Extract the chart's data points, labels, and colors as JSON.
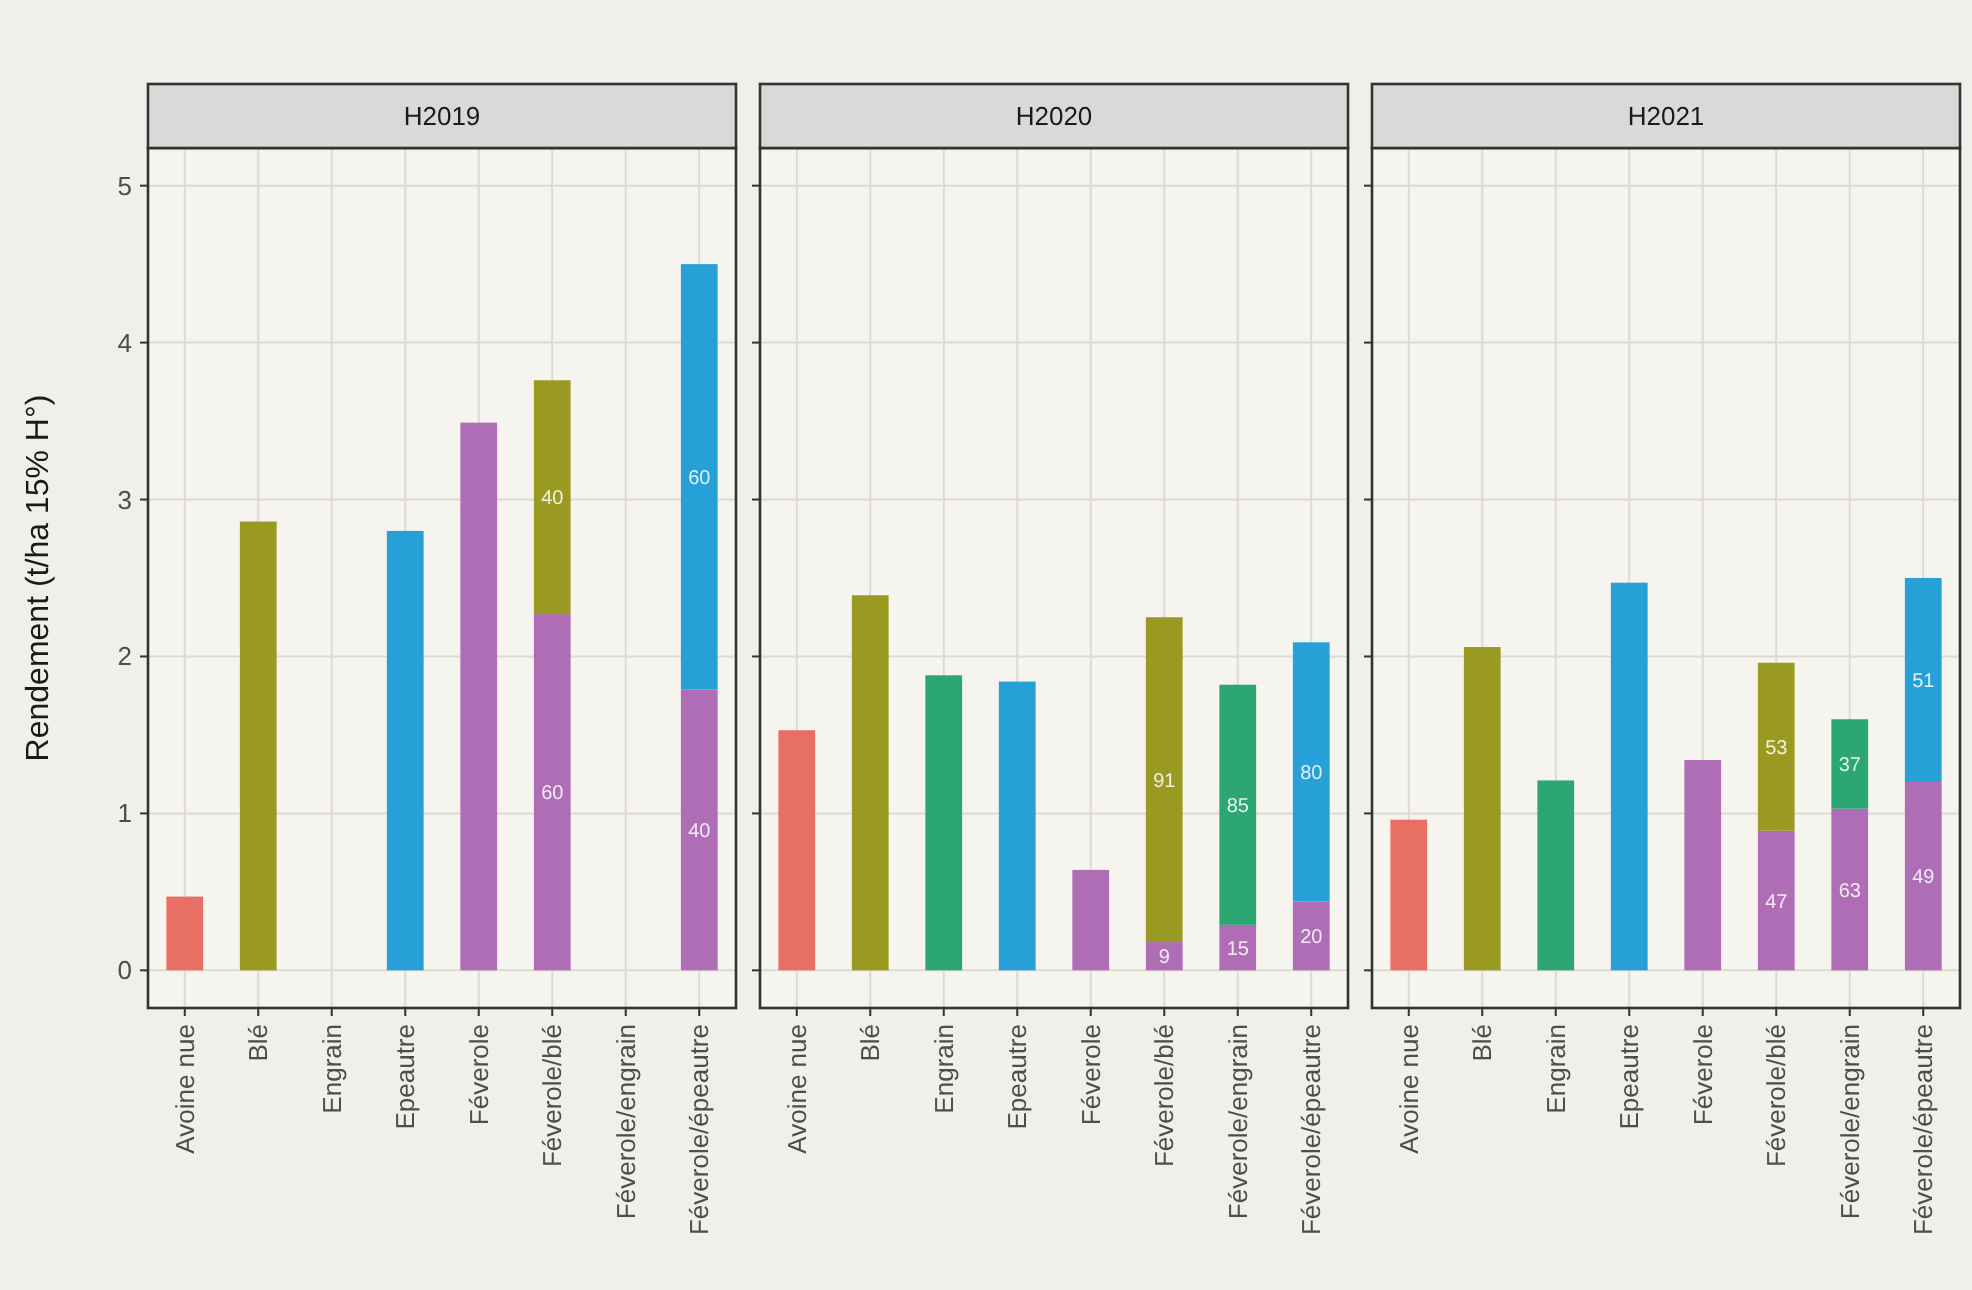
{
  "chart_data": [
    {
      "type": "bar",
      "title": "H2019",
      "ylabel": "Rendement (t/ha 15% H°)",
      "stacked": true,
      "grid": true,
      "ylim": [
        -0.24,
        5.24
      ],
      "yticks": [
        0,
        1,
        2,
        3,
        4,
        5
      ],
      "categories": [
        "Avoine nue",
        "Blé",
        "Engrain",
        "Epeautre",
        "Féverole",
        "Féverole/blé",
        "Féverole/engrain",
        "Féverole/épeautre"
      ],
      "series": [
        {
          "color": "#ae6db5",
          "values": [
            null,
            null,
            null,
            null,
            3.49,
            2.27,
            null,
            1.79
          ]
        },
        {
          "color": "#e76f63",
          "values": [
            0.47,
            null,
            null,
            null,
            null,
            null,
            null,
            null
          ]
        },
        {
          "color": "#9a9a22",
          "values": [
            null,
            2.86,
            null,
            null,
            null,
            1.49,
            null,
            null
          ]
        },
        {
          "color": "#27a0d8",
          "values": [
            null,
            null,
            null,
            2.8,
            null,
            null,
            null,
            2.71
          ]
        }
      ],
      "annotations": [
        "60",
        "40",
        "40",
        "60"
      ]
    },
    {
      "type": "bar",
      "title": "H2020",
      "stacked": true,
      "grid": true,
      "tick_labels": "x",
      "ylim": [
        -0.24,
        5.24
      ],
      "yticks": [
        0,
        1,
        2,
        3,
        4,
        5
      ],
      "categories": [
        "Avoine nue",
        "Blé",
        "Engrain",
        "Epeautre",
        "Féverole",
        "Féverole/blé",
        "Féverole/engrain",
        "Féverole/épeautre"
      ],
      "series": [
        {
          "color": "#ae6db5",
          "values": [
            null,
            null,
            null,
            null,
            0.64,
            0.18,
            0.29,
            0.44
          ]
        },
        {
          "color": "#e76f63",
          "values": [
            1.53,
            null,
            null,
            null,
            null,
            null,
            null,
            null
          ]
        },
        {
          "color": "#9a9a22",
          "values": [
            null,
            2.39,
            null,
            null,
            null,
            2.07,
            null,
            null
          ]
        },
        {
          "color": "#2ca673",
          "values": [
            null,
            null,
            1.88,
            null,
            null,
            null,
            1.53,
            null
          ]
        },
        {
          "color": "#27a0d8",
          "values": [
            null,
            null,
            null,
            1.84,
            null,
            null,
            null,
            1.65
          ]
        }
      ],
      "annotations": [
        "9",
        "91",
        "15",
        "85",
        "20",
        "80"
      ]
    },
    {
      "type": "bar",
      "title": "H2021",
      "stacked": true,
      "grid": true,
      "tick_labels": "x",
      "ylim": [
        -0.24,
        5.24
      ],
      "yticks": [
        0,
        1,
        2,
        3,
        4,
        5
      ],
      "categories": [
        "Avoine nue",
        "Blé",
        "Engrain",
        "Epeautre",
        "Féverole",
        "Féverole/blé",
        "Féverole/engrain",
        "Féverole/épeautre"
      ],
      "series": [
        {
          "color": "#ae6db5",
          "values": [
            null,
            null,
            null,
            null,
            1.34,
            0.89,
            1.03,
            1.2
          ]
        },
        {
          "color": "#e76f63",
          "values": [
            0.96,
            null,
            null,
            null,
            null,
            null,
            null,
            null
          ]
        },
        {
          "color": "#9a9a22",
          "values": [
            null,
            2.06,
            null,
            null,
            null,
            1.07,
            null,
            null
          ]
        },
        {
          "color": "#2ca673",
          "values": [
            null,
            null,
            1.21,
            null,
            null,
            null,
            0.57,
            null
          ]
        },
        {
          "color": "#27a0d8",
          "values": [
            null,
            null,
            null,
            2.47,
            null,
            null,
            null,
            1.3
          ]
        }
      ],
      "annotations": [
        "47",
        "53",
        "63",
        "37",
        "49",
        "51"
      ]
    }
  ]
}
